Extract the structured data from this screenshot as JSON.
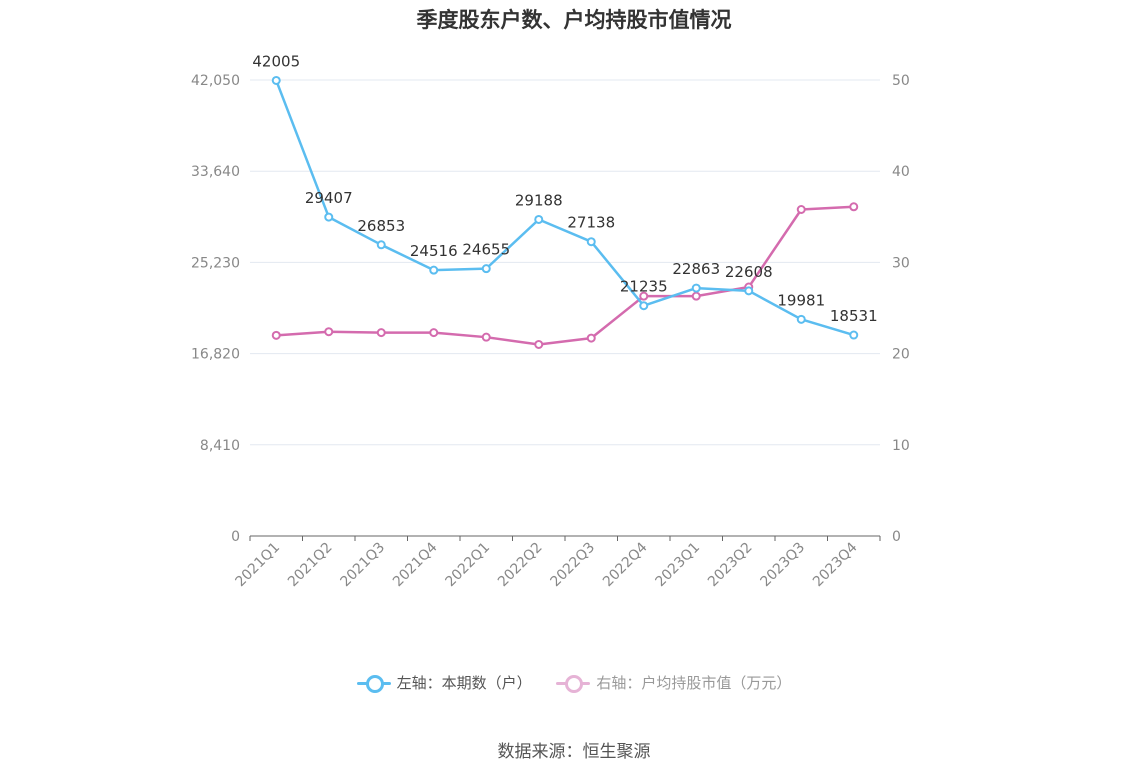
{
  "title": "季度股东户数、户均持股市值情况",
  "source": "数据来源：恒生聚源",
  "chart_data": {
    "type": "line",
    "categories": [
      "2021Q1",
      "2021Q2",
      "2021Q3",
      "2021Q4",
      "2022Q1",
      "2022Q2",
      "2022Q3",
      "2022Q4",
      "2023Q1",
      "2023Q2",
      "2023Q3",
      "2023Q4"
    ],
    "left_axis": {
      "min": 0,
      "max": 42050,
      "ticks": [
        0,
        8410,
        16820,
        25230,
        33640,
        42050
      ],
      "tick_labels": [
        "0",
        "8,410",
        "16,820",
        "25,230",
        "33,640",
        "42,050"
      ]
    },
    "right_axis": {
      "min": 0,
      "max": 50,
      "ticks": [
        0,
        10,
        20,
        30,
        40,
        50
      ],
      "tick_labels": [
        "0",
        "10",
        "20",
        "30",
        "40",
        "50"
      ]
    },
    "series": [
      {
        "name": "左轴：本期数（户）",
        "axis": "left",
        "color": "#5bbdf0",
        "values": [
          42005,
          29407,
          26853,
          24516,
          24655,
          29188,
          27138,
          21235,
          22863,
          22608,
          19981,
          18531
        ],
        "labels": [
          "42005",
          "29407",
          "26853",
          "24516",
          "24655",
          "29188",
          "27138",
          "21235",
          "22863",
          "22608",
          "19981",
          "18531"
        ]
      },
      {
        "name": "右轴：户均持股市值（万元）",
        "axis": "right",
        "color": "#d46bae",
        "values": [
          22.0,
          22.4,
          22.3,
          22.3,
          21.8,
          21.0,
          21.7,
          26.3,
          26.3,
          27.3,
          35.8,
          36.1
        ]
      }
    ],
    "grid": true,
    "legend_position": "bottom"
  }
}
